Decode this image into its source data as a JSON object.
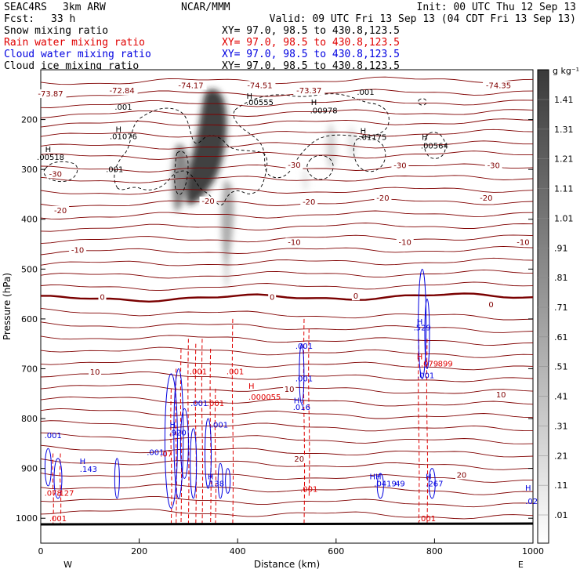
{
  "header": {
    "project": "SEAC4RS",
    "model": "3km ARW",
    "center": "NCAR/MMM",
    "init": "Init: 00 UTC Thu 12 Sep 13",
    "fcst_label": "Fcst:",
    "fcst_value": "33 h",
    "valid": "Valid: 09 UTC Fri 13 Sep 13 (04 CDT Fri 13 Sep 13)"
  },
  "legend": [
    {
      "label": "Snow mixing ratio",
      "xy": "XY=  97.0, 98.5 to 430.8,123.5",
      "color": "#000000"
    },
    {
      "label": "Rain water mixing ratio",
      "xy": "XY=  97.0, 98.5 to 430.8,123.5",
      "color": "#e00000"
    },
    {
      "label": "Cloud water mixing ratio",
      "xy": "XY=  97.0, 98.5 to 430.8,123.5",
      "color": "#0000e0"
    },
    {
      "label": "Cloud ice mixing ratio",
      "xy": "XY=  97.0, 98.5 to 430.8,123.5",
      "color": "#000000"
    }
  ],
  "colors": {
    "temperature": "#800000",
    "rain": "#e00000",
    "cloud_water": "#0000e0",
    "cloud_ice": "#000000",
    "ground": "#000000"
  },
  "chart_data": {
    "type": "cross-section",
    "xlabel": "Distance (km)",
    "ylabel": "Pressure (hPa)",
    "xlim": [
      0,
      1000
    ],
    "ylim": [
      1050,
      100
    ],
    "x_ticks": [
      0,
      200,
      400,
      600,
      800,
      1000
    ],
    "y_ticks": [
      200,
      300,
      400,
      500,
      600,
      700,
      800,
      900,
      1000
    ],
    "direction_labels": [
      {
        "x": 55,
        "text": "W"
      },
      {
        "x": 975,
        "text": "E"
      }
    ],
    "colorbar": {
      "unit": "g kg⁻¹",
      "ticks": [
        "1.41",
        "1.31",
        "1.21",
        "1.11",
        "1.01",
        ".91",
        ".81",
        ".71",
        ".61",
        ".51",
        ".41",
        ".31",
        ".21",
        ".11",
        ".01"
      ]
    },
    "temperature_labels": [
      {
        "x": 20,
        "p": 152,
        "text": "-73.87"
      },
      {
        "x": 165,
        "p": 146,
        "text": "-72.84"
      },
      {
        "x": 305,
        "p": 135,
        "text": "-74.17"
      },
      {
        "x": 445,
        "p": 135,
        "text": "-74.51"
      },
      {
        "x": 545,
        "p": 146,
        "text": "-73.37"
      },
      {
        "x": 930,
        "p": 135,
        "text": "-74.35"
      },
      {
        "x": 30,
        "p": 313,
        "text": "-30"
      },
      {
        "x": 515,
        "p": 295,
        "text": "-30"
      },
      {
        "x": 730,
        "p": 296,
        "text": "-30"
      },
      {
        "x": 920,
        "p": 296,
        "text": "-30"
      },
      {
        "x": 40,
        "p": 386,
        "text": "-20"
      },
      {
        "x": 340,
        "p": 367,
        "text": "-20"
      },
      {
        "x": 545,
        "p": 369,
        "text": "-20"
      },
      {
        "x": 695,
        "p": 361,
        "text": "-20"
      },
      {
        "x": 905,
        "p": 361,
        "text": "-20"
      },
      {
        "x": 75,
        "p": 466,
        "text": "-10"
      },
      {
        "x": 515,
        "p": 450,
        "text": "-10"
      },
      {
        "x": 740,
        "p": 450,
        "text": "-10"
      },
      {
        "x": 980,
        "p": 450,
        "text": "-10"
      },
      {
        "x": 125,
        "p": 560,
        "text": "0"
      },
      {
        "x": 470,
        "p": 560,
        "text": "0"
      },
      {
        "x": 640,
        "p": 558,
        "text": "0"
      },
      {
        "x": 915,
        "p": 575,
        "text": "0"
      },
      {
        "x": 110,
        "p": 710,
        "text": "10"
      },
      {
        "x": 505,
        "p": 745,
        "text": "10"
      },
      {
        "x": 935,
        "p": 756,
        "text": "10"
      },
      {
        "x": 525,
        "p": 885,
        "text": "20"
      },
      {
        "x": 855,
        "p": 917,
        "text": "20"
      }
    ],
    "annotations": [
      {
        "x": 158,
        "p": 225,
        "text": "H",
        "color": "#000000"
      },
      {
        "x": 168,
        "p": 239,
        "text": ".01076",
        "color": "#000000"
      },
      {
        "x": 168,
        "p": 180,
        "text": ".001",
        "color": "#000000"
      },
      {
        "x": 15,
        "p": 265,
        "text": "H",
        "color": "#000000"
      },
      {
        "x": 20,
        "p": 281,
        "text": ".00518",
        "color": "#000000"
      },
      {
        "x": 150,
        "p": 305,
        "text": ".001",
        "color": "#000000"
      },
      {
        "x": 424,
        "p": 158,
        "text": "H",
        "color": "#000000"
      },
      {
        "x": 445,
        "p": 171,
        "text": ".00555",
        "color": "#000000"
      },
      {
        "x": 555,
        "p": 171,
        "text": "H",
        "color": "#000000"
      },
      {
        "x": 575,
        "p": 187,
        "text": ".00978",
        "color": "#000000"
      },
      {
        "x": 660,
        "p": 150,
        "text": ".001",
        "color": "#000000"
      },
      {
        "x": 655,
        "p": 228,
        "text": "H",
        "color": "#000000"
      },
      {
        "x": 675,
        "p": 241,
        "text": ".01175",
        "color": "#000000"
      },
      {
        "x": 780,
        "p": 241,
        "text": "H",
        "color": "#000000"
      },
      {
        "x": 800,
        "p": 258,
        "text": ".00564",
        "color": "#000000"
      },
      {
        "x": 320,
        "p": 711,
        "text": ".001",
        "color": "#e00000"
      },
      {
        "x": 395,
        "p": 711,
        "text": ".001",
        "color": "#e00000"
      },
      {
        "x": 428,
        "p": 740,
        "text": "H",
        "color": "#e00000"
      },
      {
        "x": 455,
        "p": 762,
        "text": ".000055",
        "color": "#e00000"
      },
      {
        "x": 355,
        "p": 775,
        "text": ".001",
        "color": "#e00000"
      },
      {
        "x": 545,
        "p": 947,
        "text": ".001",
        "color": "#e00000"
      },
      {
        "x": 770,
        "p": 681,
        "text": "H",
        "color": "#e00000"
      },
      {
        "x": 790,
        "p": 695,
        "text": ".079",
        "color": "#e00000"
      },
      {
        "x": 822,
        "p": 695,
        "text": "899",
        "color": "#e00000"
      },
      {
        "x": 785,
        "p": 1006,
        "text": ".001",
        "color": "#e00000"
      },
      {
        "x": 35,
        "p": 1006,
        "text": ".001",
        "color": "#e00000"
      },
      {
        "x": 25,
        "p": 955,
        "text": ".078",
        "color": "#e00000"
      },
      {
        "x": 50,
        "p": 955,
        "text": ".127",
        "color": "#e00000"
      },
      {
        "x": 255,
        "p": 876,
        "text": ".07",
        "color": "#e00000"
      },
      {
        "x": 25,
        "p": 839,
        "text": ".001",
        "color": "#0000e0"
      },
      {
        "x": 85,
        "p": 891,
        "text": "H",
        "color": "#0000e0"
      },
      {
        "x": 97,
        "p": 907,
        "text": ".143",
        "color": "#0000e0"
      },
      {
        "x": 268,
        "p": 818,
        "text": "H",
        "color": "#0000e0"
      },
      {
        "x": 278,
        "p": 834,
        "text": ".920",
        "color": "#0000e0"
      },
      {
        "x": 322,
        "p": 775,
        "text": ".001",
        "color": "#0000e0"
      },
      {
        "x": 363,
        "p": 818,
        "text": ".001",
        "color": "#0000e0"
      },
      {
        "x": 233,
        "p": 873,
        "text": ".001",
        "color": "#0000e0"
      },
      {
        "x": 345,
        "p": 922,
        "text": "H",
        "color": "#0000e0"
      },
      {
        "x": 355,
        "p": 936,
        "text": ".138",
        "color": "#0000e0"
      },
      {
        "x": 535,
        "p": 660,
        "text": ".001",
        "color": "#0000e0"
      },
      {
        "x": 535,
        "p": 725,
        "text": ".001",
        "color": "#0000e0"
      },
      {
        "x": 520,
        "p": 769,
        "text": "H",
        "color": "#0000e0"
      },
      {
        "x": 530,
        "p": 783,
        "text": ".016",
        "color": "#0000e0"
      },
      {
        "x": 770,
        "p": 611,
        "text": "H",
        "color": "#0000e0"
      },
      {
        "x": 775,
        "p": 623,
        "text": ".529",
        "color": "#0000e0"
      },
      {
        "x": 782,
        "p": 719,
        "text": ".001",
        "color": "#0000e0"
      },
      {
        "x": 680,
        "p": 922,
        "text": "HH",
        "color": "#0000e0"
      },
      {
        "x": 700,
        "p": 936,
        "text": ".0419",
        "color": "#0000e0"
      },
      {
        "x": 730,
        "p": 936,
        "text": "49",
        "color": "#0000e0"
      },
      {
        "x": 788,
        "p": 922,
        "text": "H",
        "color": "#0000e0"
      },
      {
        "x": 800,
        "p": 936,
        "text": ".267",
        "color": "#0000e0"
      },
      {
        "x": 990,
        "p": 945,
        "text": "H",
        "color": "#0000e0"
      },
      {
        "x": 997,
        "p": 971,
        "text": ".02",
        "color": "#0000e0"
      }
    ]
  }
}
